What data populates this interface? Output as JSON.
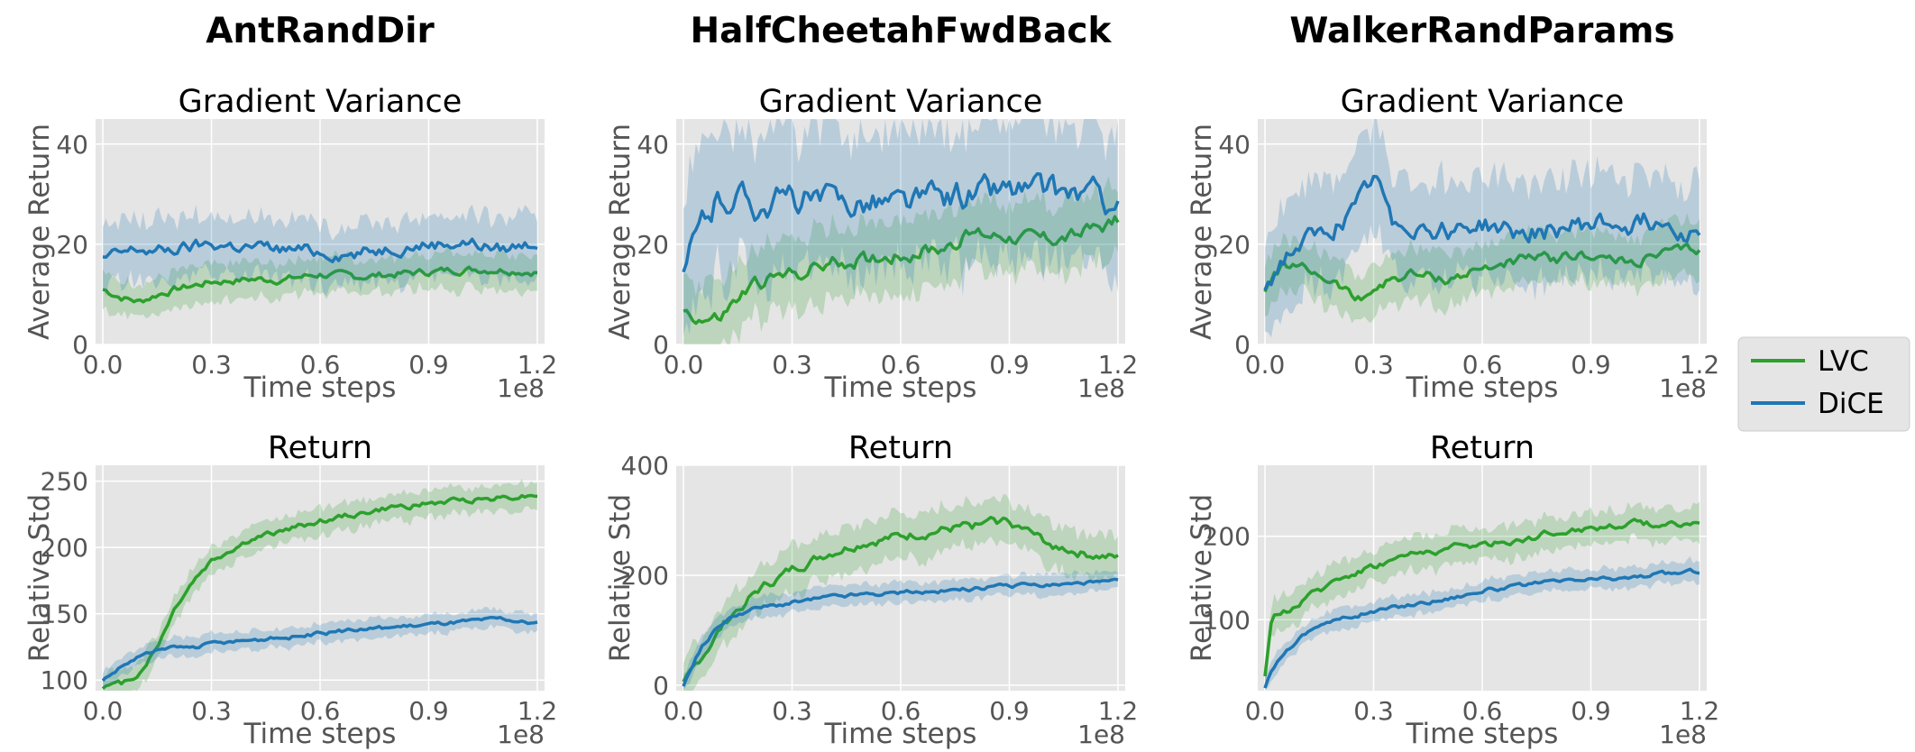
{
  "columns": [
    "AntRandDir",
    "HalfCheetahFwdBack",
    "WalkerRandParams"
  ],
  "colors": {
    "LVC": "#2ca02c",
    "DiCE": "#1f77b4",
    "panel_bg": "#e5e5e5",
    "grid": "#ffffff"
  },
  "legend": {
    "placement": "right-center",
    "entries": [
      "LVC",
      "DiCE"
    ]
  },
  "chart_data": [
    {
      "id": "ant-gv",
      "type": "line",
      "title": "Gradient Variance",
      "xlabel": "Time steps",
      "ylabel": "Average Return",
      "x_multiplier": "1e8",
      "xlim": [
        -0.02,
        1.22
      ],
      "ylim": [
        0,
        45
      ],
      "xticks": [
        0.0,
        0.3,
        0.6,
        0.9,
        1.2
      ],
      "xtick_labels": [
        "0.0",
        "0.3",
        "0.6",
        "0.9",
        "1.2"
      ],
      "yticks": [
        0,
        20,
        40
      ],
      "ytick_labels": [
        "0",
        "20",
        "40"
      ],
      "x": [
        0.0,
        0.05,
        0.1,
        0.15,
        0.2,
        0.3,
        0.4,
        0.5,
        0.6,
        0.7,
        0.8,
        0.9,
        1.0,
        1.1,
        1.2
      ],
      "series": [
        {
          "name": "LVC",
          "values": [
            11,
            9.5,
            8.5,
            10,
            11,
            12.5,
            13,
            13,
            14,
            13.5,
            14,
            14.5,
            15,
            15,
            14.5
          ],
          "band": 3.5
        },
        {
          "name": "DiCE",
          "values": [
            17,
            18,
            19,
            18.5,
            19,
            20,
            19.5,
            19,
            18.5,
            18,
            19.5,
            20,
            20.5,
            19,
            20.5
          ],
          "band": 6
        }
      ]
    },
    {
      "id": "hc-gv",
      "type": "line",
      "title": "Gradient Variance",
      "xlabel": "Time steps",
      "ylabel": "Average Return",
      "x_multiplier": "1e8",
      "xlim": [
        -0.02,
        1.22
      ],
      "ylim": [
        0,
        45
      ],
      "xticks": [
        0.0,
        0.3,
        0.6,
        0.9,
        1.2
      ],
      "xtick_labels": [
        "0.0",
        "0.3",
        "0.6",
        "0.9",
        "1.2"
      ],
      "yticks": [
        0,
        20,
        40
      ],
      "ytick_labels": [
        "0",
        "20",
        "40"
      ],
      "x": [
        0.0,
        0.05,
        0.1,
        0.15,
        0.2,
        0.3,
        0.4,
        0.5,
        0.6,
        0.7,
        0.8,
        0.9,
        1.0,
        1.1,
        1.2
      ],
      "series": [
        {
          "name": "LVC",
          "values": [
            7,
            5,
            5,
            9,
            12,
            14,
            16,
            17,
            18,
            19,
            22,
            22,
            21,
            22,
            25
          ],
          "band": 7
        },
        {
          "name": "DiCE",
          "values": [
            14,
            24,
            29,
            30,
            28,
            29,
            28,
            29,
            28,
            29,
            30,
            31,
            30,
            30,
            28
          ],
          "band": 14
        }
      ]
    },
    {
      "id": "walker-gv",
      "type": "line",
      "title": "Gradient Variance",
      "xlabel": "Time steps",
      "ylabel": "Average Return",
      "x_multiplier": "1e8",
      "xlim": [
        -0.02,
        1.22
      ],
      "ylim": [
        0,
        45
      ],
      "xticks": [
        0.0,
        0.3,
        0.6,
        0.9,
        1.2
      ],
      "xtick_labels": [
        "0.0",
        "0.3",
        "0.6",
        "0.9",
        "1.2"
      ],
      "yticks": [
        0,
        20,
        40
      ],
      "ytick_labels": [
        "0",
        "20",
        "40"
      ],
      "x": [
        0.0,
        0.05,
        0.1,
        0.15,
        0.2,
        0.25,
        0.3,
        0.35,
        0.4,
        0.5,
        0.6,
        0.7,
        0.8,
        0.9,
        1.0,
        1.1,
        1.2
      ],
      "series": [
        {
          "name": "LVC",
          "values": [
            11,
            16,
            15,
            14,
            12,
            9,
            11,
            13,
            14,
            13,
            15,
            17,
            17,
            18,
            16,
            18,
            19
          ],
          "band": 5
        },
        {
          "name": "DiCE",
          "values": [
            11,
            17,
            20,
            21,
            24,
            26,
            33,
            25,
            24,
            23,
            24,
            22,
            23,
            24,
            24,
            25,
            22
          ],
          "band": 10
        }
      ]
    },
    {
      "id": "ant-ret",
      "type": "line",
      "title": "Return",
      "xlabel": "Time steps",
      "ylabel": "Relative Std",
      "x_multiplier": "1e8",
      "xlim": [
        -0.02,
        1.22
      ],
      "ylim": [
        92,
        262
      ],
      "xticks": [
        0.0,
        0.3,
        0.6,
        0.9,
        1.2
      ],
      "xtick_labels": [
        "0.0",
        "0.3",
        "0.6",
        "0.9",
        "1.2"
      ],
      "yticks": [
        100,
        150,
        200,
        250
      ],
      "ytick_labels": [
        "100",
        "150",
        "200",
        "250"
      ],
      "x": [
        0.0,
        0.05,
        0.1,
        0.15,
        0.2,
        0.25,
        0.3,
        0.4,
        0.5,
        0.6,
        0.7,
        0.8,
        0.9,
        1.0,
        1.1,
        1.2
      ],
      "series": [
        {
          "name": "LVC",
          "values": [
            95,
            97,
            105,
            125,
            155,
            175,
            190,
            205,
            213,
            220,
            225,
            230,
            233,
            236,
            238,
            240
          ],
          "band": 10
        },
        {
          "name": "DiCE",
          "values": [
            100,
            110,
            118,
            122,
            124,
            125,
            127,
            130,
            132,
            135,
            138,
            140,
            142,
            144,
            146,
            142
          ],
          "band": 7
        }
      ]
    },
    {
      "id": "hc-ret",
      "type": "line",
      "title": "Return",
      "xlabel": "Time steps",
      "ylabel": "Relative Std",
      "x_multiplier": "1e8",
      "xlim": [
        -0.02,
        1.22
      ],
      "ylim": [
        -10,
        400
      ],
      "xticks": [
        0.0,
        0.3,
        0.6,
        0.9,
        1.2
      ],
      "xtick_labels": [
        "0.0",
        "0.3",
        "0.6",
        "0.9",
        "1.2"
      ],
      "yticks": [
        0,
        200,
        400
      ],
      "ytick_labels": [
        "0",
        "200",
        "400"
      ],
      "x": [
        0.0,
        0.05,
        0.1,
        0.15,
        0.2,
        0.3,
        0.4,
        0.5,
        0.6,
        0.7,
        0.8,
        0.9,
        1.0,
        1.1,
        1.2
      ],
      "series": [
        {
          "name": "LVC",
          "values": [
            0,
            50,
            100,
            140,
            170,
            210,
            240,
            260,
            270,
            280,
            290,
            300,
            260,
            240,
            230
          ],
          "band": 40
        },
        {
          "name": "DiCE",
          "values": [
            0,
            70,
            110,
            130,
            140,
            150,
            160,
            165,
            168,
            170,
            175,
            180,
            182,
            185,
            188
          ],
          "band": 18
        }
      ]
    },
    {
      "id": "walker-ret",
      "type": "line",
      "title": "Return",
      "xlabel": "Time steps",
      "ylabel": "Relative Std",
      "x_multiplier": "1e8",
      "xlim": [
        -0.02,
        1.22
      ],
      "ylim": [
        15,
        285
      ],
      "xticks": [
        0.0,
        0.3,
        0.6,
        0.9,
        1.2
      ],
      "xtick_labels": [
        "0.0",
        "0.3",
        "0.6",
        "0.9",
        "1.2"
      ],
      "yticks": [
        100,
        200
      ],
      "ytick_labels": [
        "100",
        "200"
      ],
      "x": [
        0.0,
        0.02,
        0.05,
        0.1,
        0.15,
        0.2,
        0.3,
        0.4,
        0.5,
        0.6,
        0.7,
        0.8,
        0.9,
        1.0,
        1.1,
        1.2
      ],
      "series": [
        {
          "name": "LVC",
          "values": [
            30,
            100,
            110,
            120,
            135,
            150,
            165,
            178,
            185,
            190,
            195,
            205,
            210,
            215,
            215,
            215
          ],
          "band": 20
        },
        {
          "name": "DiCE",
          "values": [
            20,
            40,
            60,
            80,
            95,
            100,
            110,
            118,
            125,
            135,
            140,
            145,
            148,
            150,
            155,
            158
          ],
          "band": 12
        }
      ]
    }
  ]
}
